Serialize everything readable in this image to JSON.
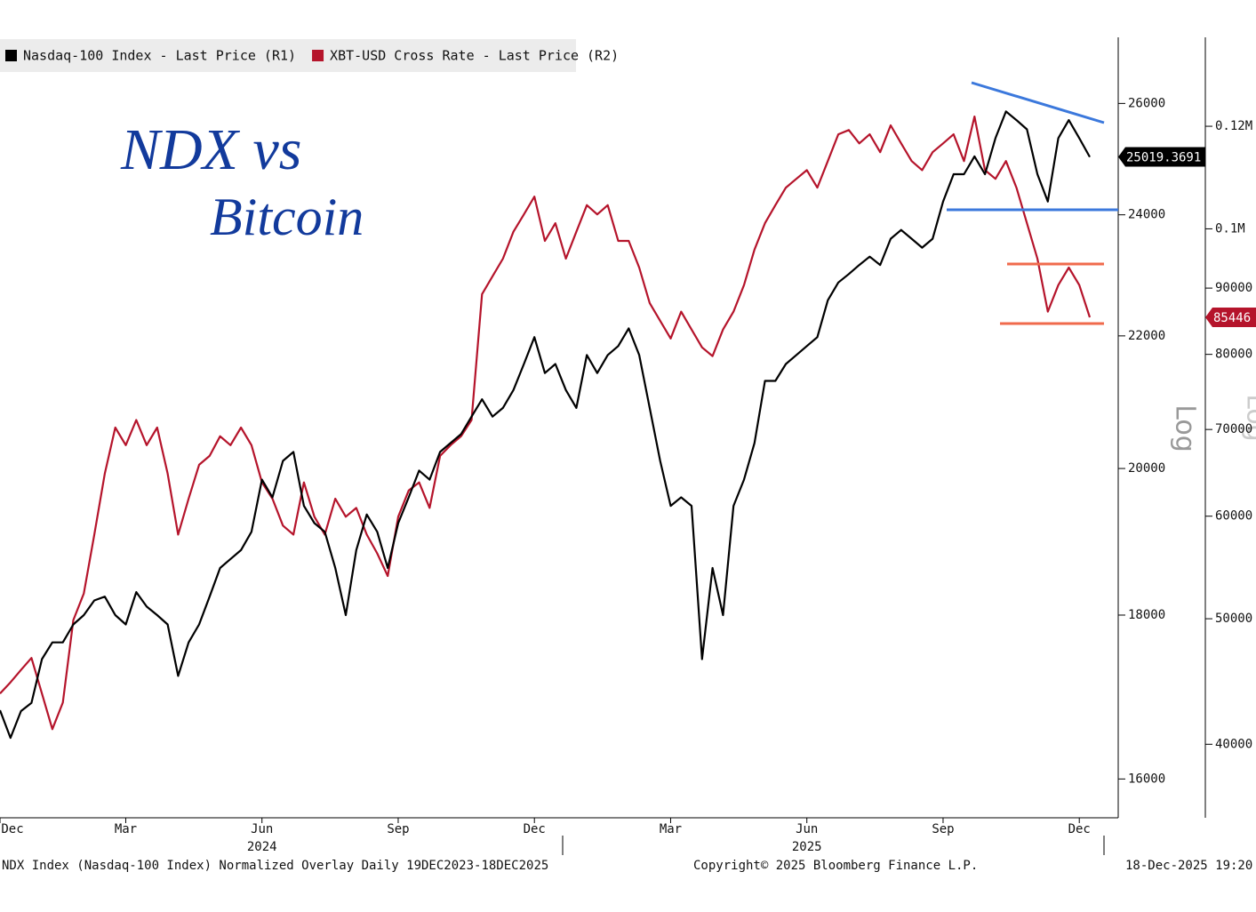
{
  "chart_data": {
    "type": "line",
    "annotations": [
      "NDX vs",
      "Bitcoin"
    ],
    "categories": [
      "Dec",
      null,
      null,
      null,
      null,
      null,
      null,
      null,
      null,
      null,
      null,
      null,
      "Mar",
      null,
      null,
      null,
      null,
      null,
      null,
      null,
      null,
      null,
      null,
      null,
      null,
      "Jun",
      null,
      null,
      null,
      null,
      null,
      null,
      null,
      null,
      null,
      null,
      null,
      null,
      "Sep",
      null,
      null,
      null,
      null,
      null,
      null,
      null,
      null,
      null,
      null,
      null,
      null,
      "Dec",
      null,
      null,
      null,
      null,
      null,
      null,
      null,
      null,
      null,
      null,
      null,
      null,
      "Mar",
      null,
      null,
      null,
      null,
      null,
      null,
      null,
      null,
      null,
      null,
      null,
      null,
      "Jun",
      null,
      null,
      null,
      null,
      null,
      null,
      null,
      null,
      null,
      null,
      null,
      null,
      "Sep",
      null,
      null,
      null,
      null,
      null,
      null,
      null,
      null,
      null,
      null,
      null,
      null,
      "Dec",
      null
    ],
    "year_labels": [
      {
        "index": 25,
        "label": "2024"
      },
      {
        "index": 77,
        "label": "2025"
      }
    ],
    "series": [
      {
        "name": "Nasdaq-100 Index - Last Price (R1)",
        "color": "#000000",
        "axis": "y",
        "values": [
          16810,
          16480,
          16800,
          16900,
          17440,
          17650,
          17650,
          17880,
          18000,
          18190,
          18240,
          18000,
          17880,
          18300,
          18110,
          18000,
          17880,
          17230,
          17650,
          17880,
          18240,
          18620,
          18740,
          18860,
          19110,
          19840,
          19590,
          20110,
          20240,
          19470,
          19230,
          19110,
          18620,
          18000,
          18860,
          19350,
          19110,
          18620,
          19230,
          19590,
          19970,
          19840,
          20240,
          20370,
          20500,
          20760,
          21020,
          20760,
          20890,
          21160,
          21560,
          21980,
          21420,
          21560,
          21160,
          20890,
          21700,
          21420,
          21700,
          21840,
          22120,
          21700,
          20890,
          20110,
          19470,
          19590,
          19470,
          17440,
          18620,
          18000,
          19470,
          19840,
          20370,
          21300,
          21300,
          21560,
          21700,
          21840,
          21980,
          22570,
          22860,
          23000,
          23150,
          23290,
          23150,
          23590,
          23740,
          23590,
          23440,
          23590,
          24230,
          24710,
          24710,
          25030,
          24710,
          25360,
          25850,
          25690,
          25520,
          24710,
          24230,
          25360,
          25690,
          25360,
          25019.3691
        ]
      },
      {
        "name": "XBT-USD Cross Rate - Last Price (R2)",
        "color": "#b5142b",
        "axis": "y2",
        "values": [
          43770,
          44660,
          45650,
          46630,
          43770,
          41090,
          43080,
          49880,
          52300,
          58070,
          64720,
          70240,
          68080,
          71190,
          68080,
          70240,
          64720,
          58070,
          61900,
          65740,
          66790,
          69160,
          68080,
          70240,
          68080,
          63710,
          61900,
          59000,
          58070,
          63710,
          59940,
          58070,
          61900,
          59940,
          60890,
          58070,
          56160,
          53950,
          59940,
          62800,
          63710,
          60890,
          66790,
          68080,
          69160,
          71190,
          89040,
          91920,
          94840,
          99480,
          102600,
          105900,
          97880,
          101000,
          94840,
          99480,
          104300,
          102600,
          104300,
          97880,
          97880,
          93350,
          87650,
          84920,
          82290,
          86310,
          83610,
          81000,
          79750,
          83610,
          86310,
          90480,
          96370,
          101000,
          104300,
          107600,
          109300,
          111000,
          107600,
          112800,
          118300,
          119200,
          116400,
          118300,
          114600,
          120200,
          116400,
          112800,
          111000,
          114600,
          116400,
          118300,
          112800,
          122100,
          111000,
          109300,
          112800,
          107600,
          101000,
          94840,
          86310,
          90480,
          93350,
          90480,
          85446
        ]
      }
    ],
    "log": true,
    "ylim": [
      15560,
      27300
    ],
    "yticks": [
      16000,
      18000,
      20000,
      22000,
      24000,
      26000
    ],
    "y_scale_label": "Log",
    "y2lim": [
      35100,
      141000
    ],
    "y2ticks": [
      40000,
      50000,
      60000,
      70000,
      80000,
      90000,
      {
        "value": 100000,
        "label": "0.1M"
      },
      {
        "value": 120000,
        "label": "0.12M"
      }
    ],
    "y2_scale_label": "Log",
    "footer": {
      "left": "NDX Index (Nasdaq-100 Index) Normalized Overlay Daily 19DEC2023-18DEC2025",
      "center": "Copyright© 2025 Bloomberg Finance L.P.",
      "right": "18-Dec-2025 19:20"
    }
  }
}
